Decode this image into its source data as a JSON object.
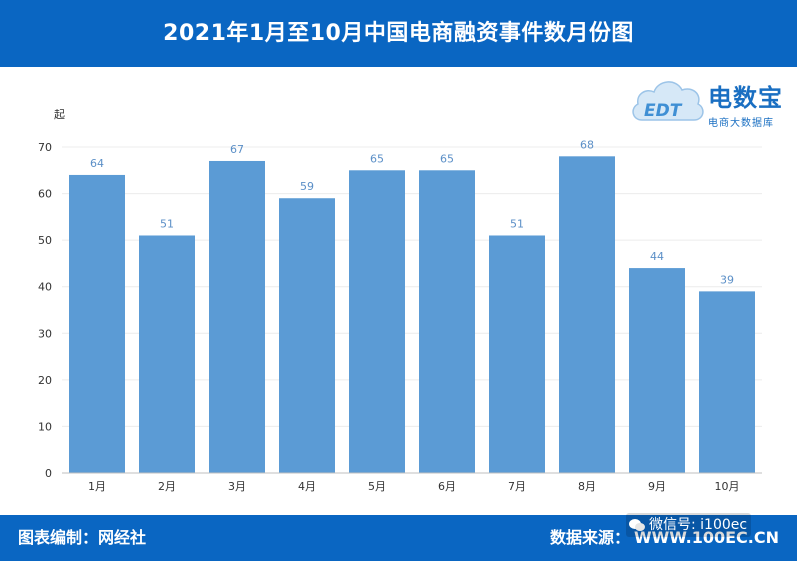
{
  "header": {
    "title": "2021年1月至10月中国电商融资事件数月份图"
  },
  "logo": {
    "icon_text": "EDT",
    "main": "电数宝",
    "sub": "电商大数据库"
  },
  "footer": {
    "left": "图表编制：网经社",
    "right_label": "数据来源：",
    "right_value": "WWW.100EC.CN"
  },
  "watermark": {
    "icon": "wechat-icon",
    "text": "微信号: i100ec"
  },
  "colors": {
    "bar": "#5b9bd5",
    "header": "#0a66c2",
    "value_label": "#5b8fc7"
  },
  "chart_data": {
    "type": "bar",
    "unit": "起",
    "categories": [
      "1月",
      "2月",
      "3月",
      "4月",
      "5月",
      "6月",
      "7月",
      "8月",
      "9月",
      "10月"
    ],
    "values": [
      64,
      51,
      67,
      59,
      65,
      65,
      51,
      68,
      44,
      39
    ],
    "ylim": [
      0,
      70
    ],
    "yticks": [
      0,
      10,
      20,
      30,
      40,
      50,
      60,
      70
    ],
    "grid": true,
    "data_labels": true
  }
}
